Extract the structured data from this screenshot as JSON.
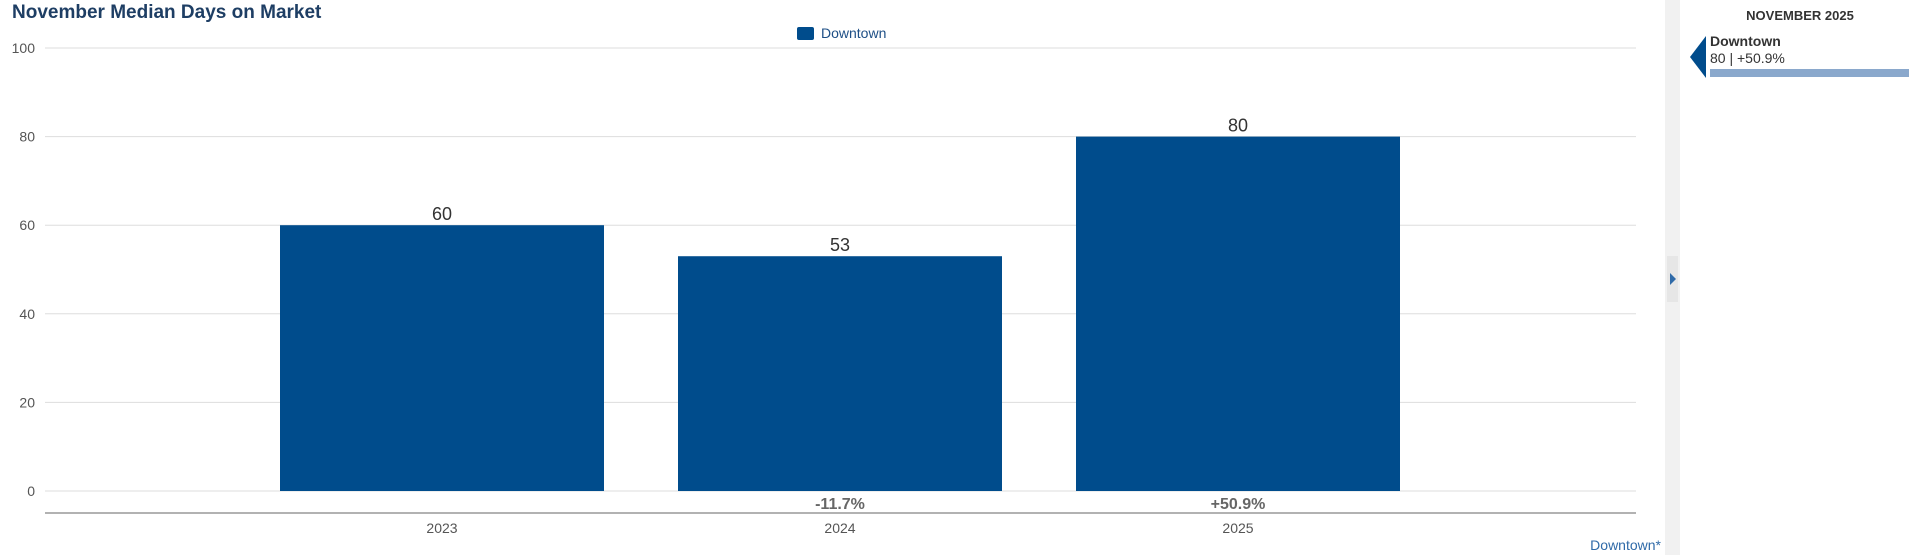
{
  "title": "November Median Days on Market",
  "legend": {
    "label": "Downtown",
    "color": "#004c8c"
  },
  "source_label": "Downtown*",
  "chart_data": {
    "type": "bar",
    "title": "November Median Days on Market",
    "xlabel": "",
    "ylabel": "",
    "categories": [
      "2023",
      "2024",
      "2025"
    ],
    "series": [
      {
        "name": "Downtown",
        "values": [
          60,
          53,
          80
        ],
        "color": "#004c8c"
      }
    ],
    "data_labels": [
      "60",
      "53",
      "80"
    ],
    "change_labels": [
      "",
      "-11.7%",
      "+50.9%"
    ],
    "ylim": [
      0,
      100
    ],
    "yticks": [
      0,
      20,
      40,
      60,
      80,
      100
    ],
    "grid": true,
    "legend_position": "top-center"
  },
  "side_panel": {
    "title": "NOVEMBER 2025",
    "entries": [
      {
        "name": "Downtown",
        "value_text": "80 | +50.9%",
        "bar_fraction": 1.0,
        "bar_color": "#8aa8cc",
        "pointer_color": "#004c8c"
      }
    ]
  }
}
